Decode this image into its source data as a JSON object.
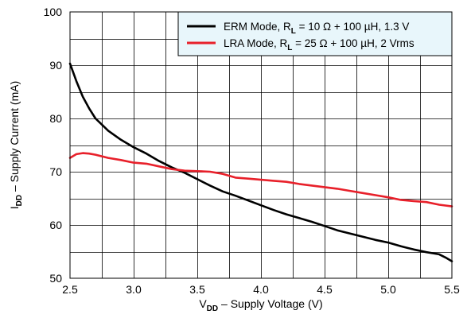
{
  "chart_data": {
    "type": "line",
    "xlabel": {
      "main": "V",
      "sub": "DD",
      "rest": " – Supply Voltage (V)"
    },
    "ylabel": {
      "main": "I",
      "sub": "DD",
      "rest": " – Supply Current (mA)"
    },
    "xlim": [
      2.5,
      5.5
    ],
    "ylim": [
      50,
      100
    ],
    "x_ticks": [
      "2.5",
      "3.0",
      "3.5",
      "4.0",
      "4.5",
      "5.0",
      "5.5"
    ],
    "y_ticks": [
      "50",
      "60",
      "70",
      "80",
      "90",
      "100"
    ],
    "x_minor_step": 0.25,
    "y_minor_step": 5,
    "grid": true,
    "legend_position": "top-right",
    "colors": {
      "grid": "#000000",
      "erm": "#000000",
      "lra": "#e8202a",
      "legend_bg": "#e8f6fb"
    },
    "series": [
      {
        "name": "ERM Mode, R<sub>L</sub> = 10 Ω + 100 µH, 1.3 V",
        "legend": {
          "main": "ERM Mode, R",
          "sub": "L",
          "rest": " = 10 Ω + 100 µH, 1.3 V"
        },
        "color": "#000000",
        "x": [
          2.5,
          2.55,
          2.6,
          2.65,
          2.7,
          2.8,
          2.9,
          3.0,
          3.1,
          3.2,
          3.3,
          3.4,
          3.5,
          3.6,
          3.7,
          3.8,
          3.9,
          4.0,
          4.1,
          4.2,
          4.3,
          4.4,
          4.5,
          4.6,
          4.7,
          4.8,
          4.9,
          5.0,
          5.1,
          5.2,
          5.3,
          5.4,
          5.45,
          5.5
        ],
        "y": [
          90.3,
          87.0,
          84.1,
          81.9,
          80.0,
          77.7,
          76.0,
          74.6,
          73.4,
          72.0,
          70.8,
          69.8,
          68.6,
          67.4,
          66.3,
          65.5,
          64.6,
          63.7,
          62.8,
          62.0,
          61.3,
          60.6,
          59.8,
          59.0,
          58.4,
          57.8,
          57.2,
          56.7,
          56.0,
          55.4,
          54.9,
          54.5,
          53.9,
          53.2
        ]
      },
      {
        "name": "LRA Mode, R<sub>L</sub> = 25 Ω + 100 µH, 2 Vrms",
        "legend": {
          "main": "LRA Mode, R",
          "sub": "L",
          "rest": " = 25 Ω + 100 µH, 2 Vrms"
        },
        "color": "#e8202a",
        "x": [
          2.5,
          2.55,
          2.6,
          2.65,
          2.7,
          2.8,
          2.9,
          3.0,
          3.1,
          3.2,
          3.3,
          3.4,
          3.5,
          3.6,
          3.7,
          3.8,
          3.9,
          4.0,
          4.1,
          4.2,
          4.3,
          4.4,
          4.5,
          4.6,
          4.7,
          4.8,
          4.9,
          5.0,
          5.1,
          5.2,
          5.3,
          5.4,
          5.5
        ],
        "y": [
          72.6,
          73.3,
          73.5,
          73.4,
          73.2,
          72.6,
          72.2,
          71.7,
          71.5,
          71.0,
          70.5,
          70.2,
          70.1,
          70.0,
          69.6,
          68.9,
          68.7,
          68.5,
          68.3,
          68.1,
          67.7,
          67.4,
          67.1,
          66.8,
          66.4,
          66.0,
          65.6,
          65.2,
          64.7,
          64.5,
          64.3,
          63.8,
          63.5
        ]
      }
    ]
  }
}
